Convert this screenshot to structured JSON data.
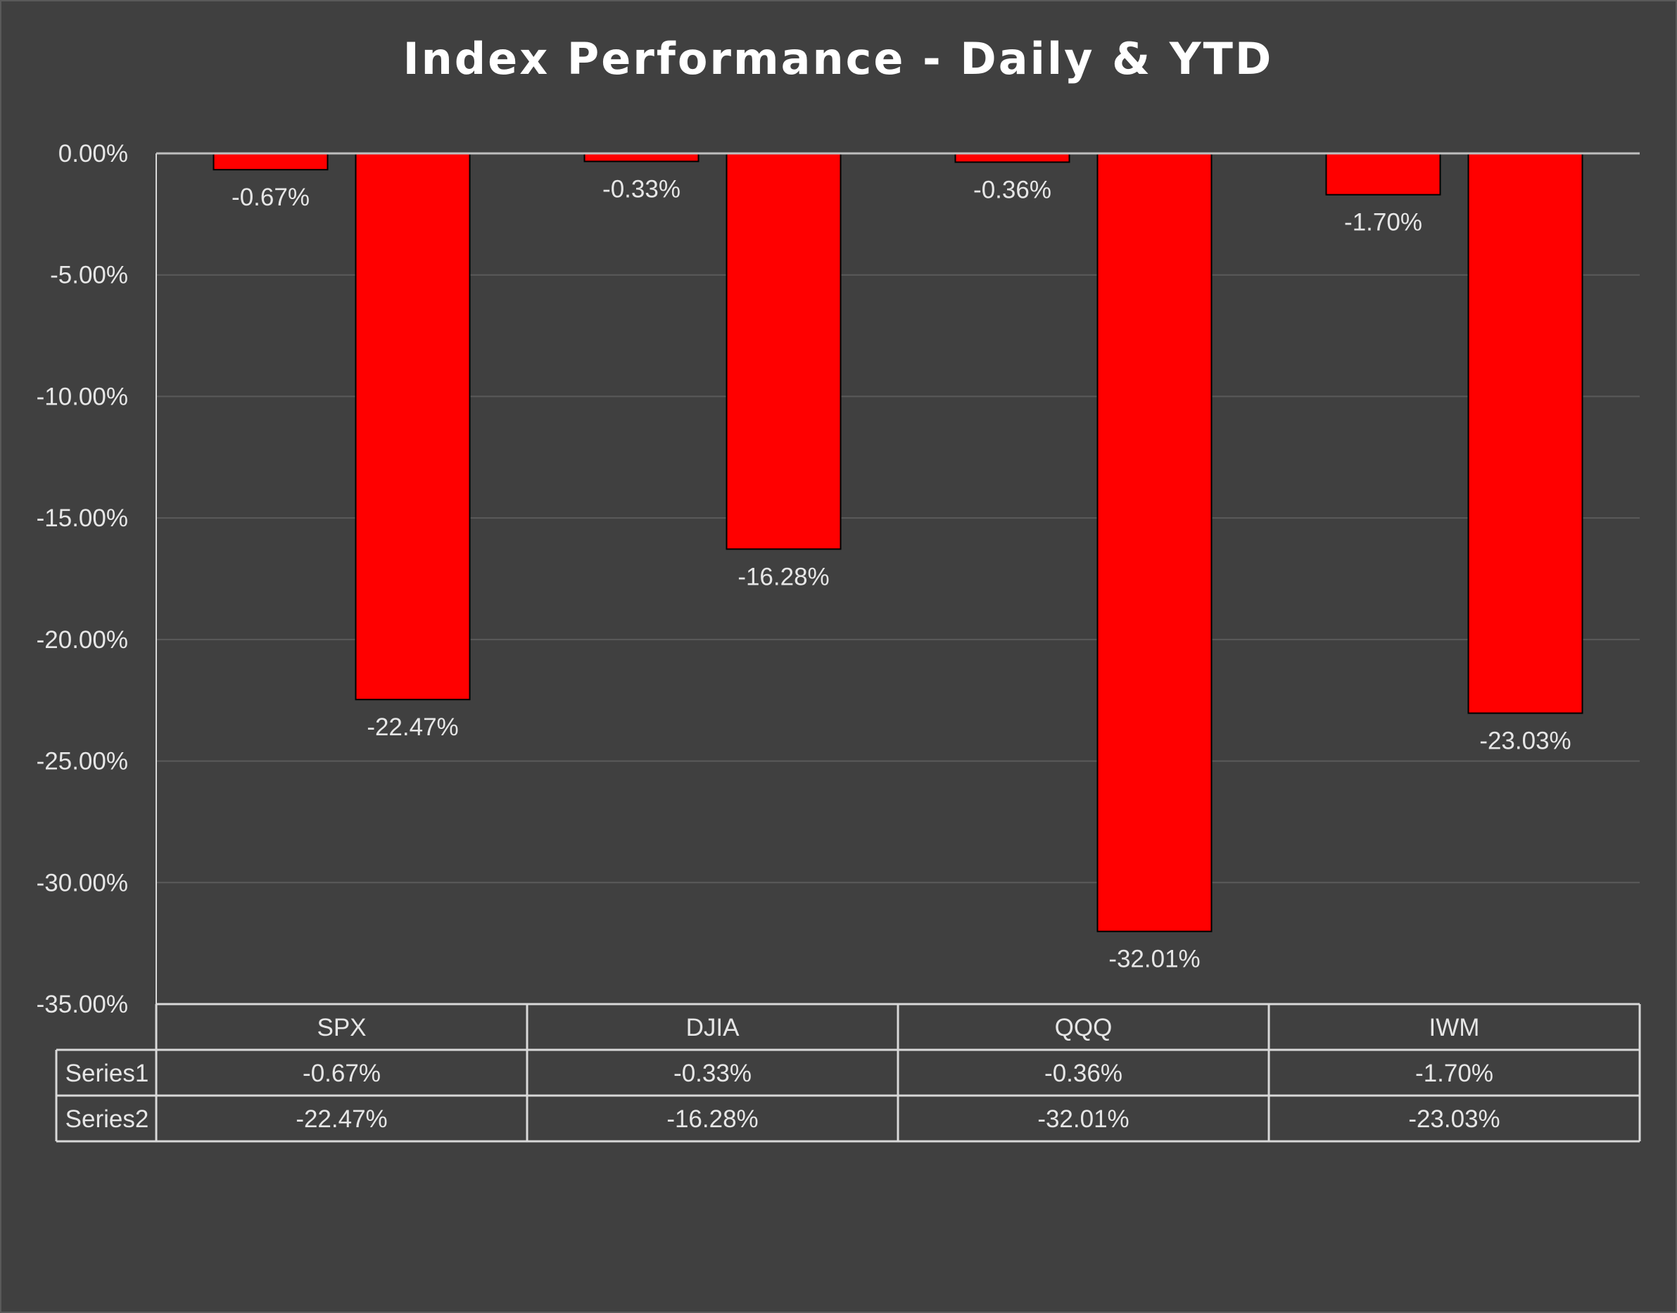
{
  "colors": {
    "background": "#404040",
    "bar": "#ff0000",
    "bar_border": "#000000",
    "grid": "#5a5a5a",
    "axis": "#d9d9d9",
    "text": "#e6e6e6",
    "title": "#ffffff"
  },
  "chart_data": {
    "type": "bar",
    "title": "Index Performance - Daily & YTD",
    "categories": [
      "SPX",
      "DJIA",
      "QQQ",
      "IWM"
    ],
    "series": [
      {
        "name": "Series1",
        "values": [
          -0.67,
          -0.33,
          -0.36,
          -1.7
        ],
        "labels": [
          "-0.67%",
          "-0.33%",
          "-0.36%",
          "-1.70%"
        ]
      },
      {
        "name": "Series2",
        "values": [
          -22.47,
          -16.28,
          -32.01,
          -23.03
        ],
        "labels": [
          "-22.47%",
          "-16.28%",
          "-32.01%",
          "-23.03%"
        ]
      }
    ],
    "ylim": [
      -35,
      0
    ],
    "yticks": [
      0,
      -5,
      -10,
      -15,
      -20,
      -25,
      -30,
      -35
    ],
    "ytick_labels": [
      "0.00%",
      "-5.00%",
      "-10.00%",
      "-15.00%",
      "-20.00%",
      "-25.00%",
      "-30.00%",
      "-35.00%"
    ],
    "grid": true,
    "data_table": true,
    "legend": "none"
  }
}
